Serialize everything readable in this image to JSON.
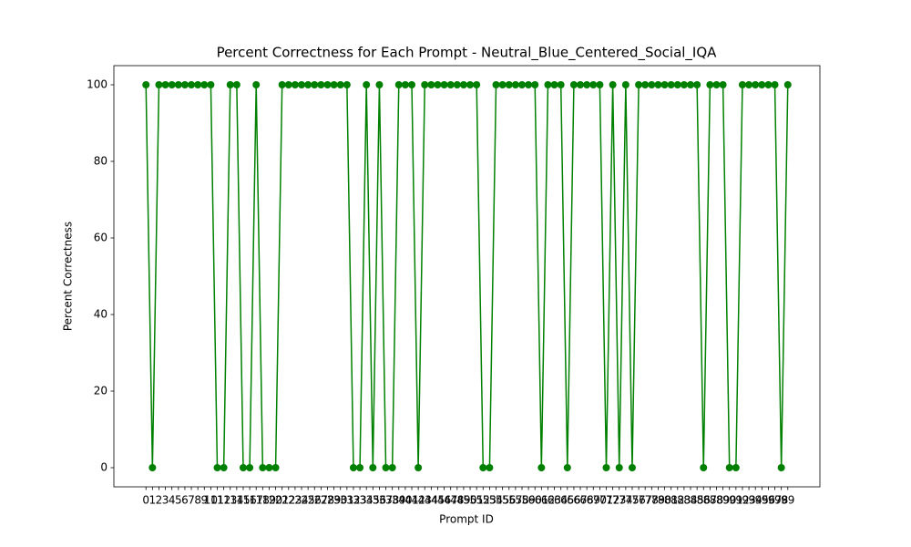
{
  "chart_data": {
    "type": "line",
    "title": "Percent Correctness for Each Prompt - Neutral_Blue_Centered_Social_IQA",
    "x_label": "Prompt ID",
    "y_label": "Percent Correctness",
    "x": [
      0,
      1,
      2,
      3,
      4,
      5,
      6,
      7,
      8,
      9,
      10,
      11,
      12,
      13,
      14,
      15,
      16,
      17,
      18,
      19,
      20,
      21,
      22,
      23,
      24,
      25,
      26,
      27,
      28,
      29,
      30,
      31,
      32,
      33,
      34,
      35,
      36,
      37,
      38,
      39,
      40,
      41,
      42,
      43,
      44,
      45,
      46,
      47,
      48,
      49,
      50,
      51,
      52,
      53,
      54,
      55,
      56,
      57,
      58,
      59,
      60,
      61,
      62,
      63,
      64,
      65,
      66,
      67,
      68,
      69,
      70,
      71,
      72,
      73,
      74,
      75,
      76,
      77,
      78,
      79,
      80,
      81,
      82,
      83,
      84,
      85,
      86,
      87,
      88,
      89,
      90,
      91,
      92,
      93,
      94,
      95,
      96,
      97,
      98,
      99
    ],
    "series": [
      {
        "name": "Percent Correctness",
        "color": "#008000",
        "values": [
          100,
          0,
          100,
          100,
          100,
          100,
          100,
          100,
          100,
          100,
          100,
          0,
          0,
          100,
          100,
          0,
          0,
          100,
          0,
          0,
          0,
          100,
          100,
          100,
          100,
          100,
          100,
          100,
          100,
          100,
          100,
          100,
          0,
          0,
          100,
          0,
          100,
          0,
          0,
          100,
          100,
          100,
          0,
          100,
          100,
          100,
          100,
          100,
          100,
          100,
          100,
          100,
          0,
          0,
          100,
          100,
          100,
          100,
          100,
          100,
          100,
          0,
          100,
          100,
          100,
          0,
          100,
          100,
          100,
          100,
          100,
          0,
          100,
          0,
          100,
          0,
          100,
          100,
          100,
          100,
          100,
          100,
          100,
          100,
          100,
          100,
          0,
          100,
          100,
          100,
          0,
          0,
          100,
          100,
          100,
          100,
          100,
          100,
          0,
          100
        ]
      }
    ],
    "xlim": [
      -4.95,
      103.95
    ],
    "ylim": [
      -5,
      105
    ],
    "yticks": [
      0,
      20,
      40,
      60,
      80,
      100
    ]
  }
}
